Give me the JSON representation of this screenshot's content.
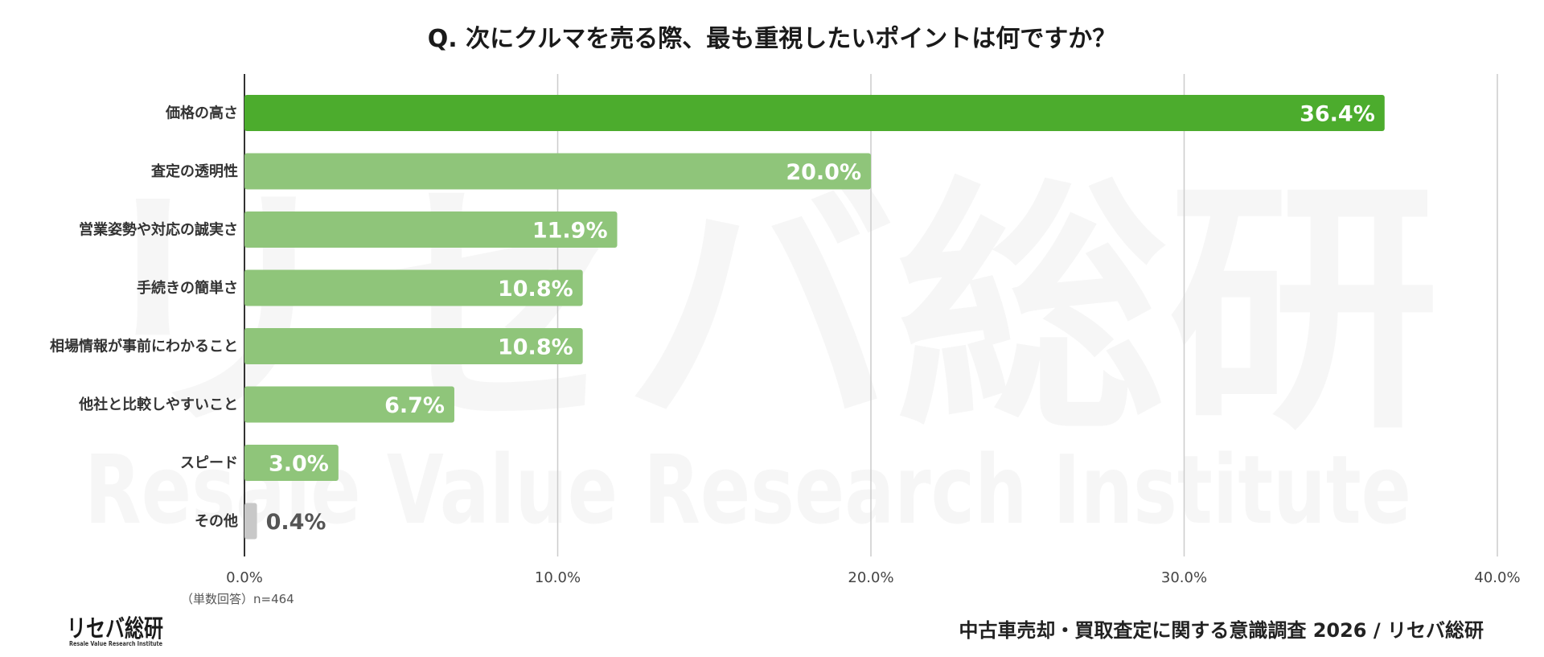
{
  "chart_data": {
    "type": "bar",
    "orientation": "horizontal",
    "title": "Q. 次にクルマを売る際、最も重視したいポイントは何ですか？",
    "categories": [
      "価格の高さ",
      "査定の透明性",
      "営業姿勢や対応の誠実さ",
      "手続きの簡単さ",
      "相場情報が事前にわかること",
      "他社と比較しやすいこと",
      "スピード",
      "その他"
    ],
    "values": [
      36.4,
      20.0,
      11.9,
      10.8,
      10.8,
      6.7,
      3.0,
      0.4
    ],
    "value_labels": [
      "36.4%",
      "20.0%",
      "11.9%",
      "10.8%",
      "10.8%",
      "6.7%",
      "3.0%",
      "0.4%"
    ],
    "xlim": [
      0,
      40
    ],
    "x_ticks": [
      0,
      10,
      20,
      30,
      40
    ],
    "x_tick_labels": [
      "0.0%",
      "10.0%",
      "20.0%",
      "30.0%",
      "40.0%"
    ],
    "grid": "vertical",
    "colors": {
      "highlight": "#4cac2d",
      "default": "#8fc57a",
      "other": "#c8c8c8",
      "grid": "#cccccc",
      "axis": "#333333"
    }
  },
  "note": "（単数回答）n=464",
  "source": "中古車売却・買取査定に関する意識調査 2026 / リセバ総研",
  "logo": {
    "main": "リセバ総研",
    "sub": "Resale Value Research Institute"
  },
  "watermark": {
    "main": "リセバ総研",
    "sub": "Resale Value Research Institute"
  }
}
